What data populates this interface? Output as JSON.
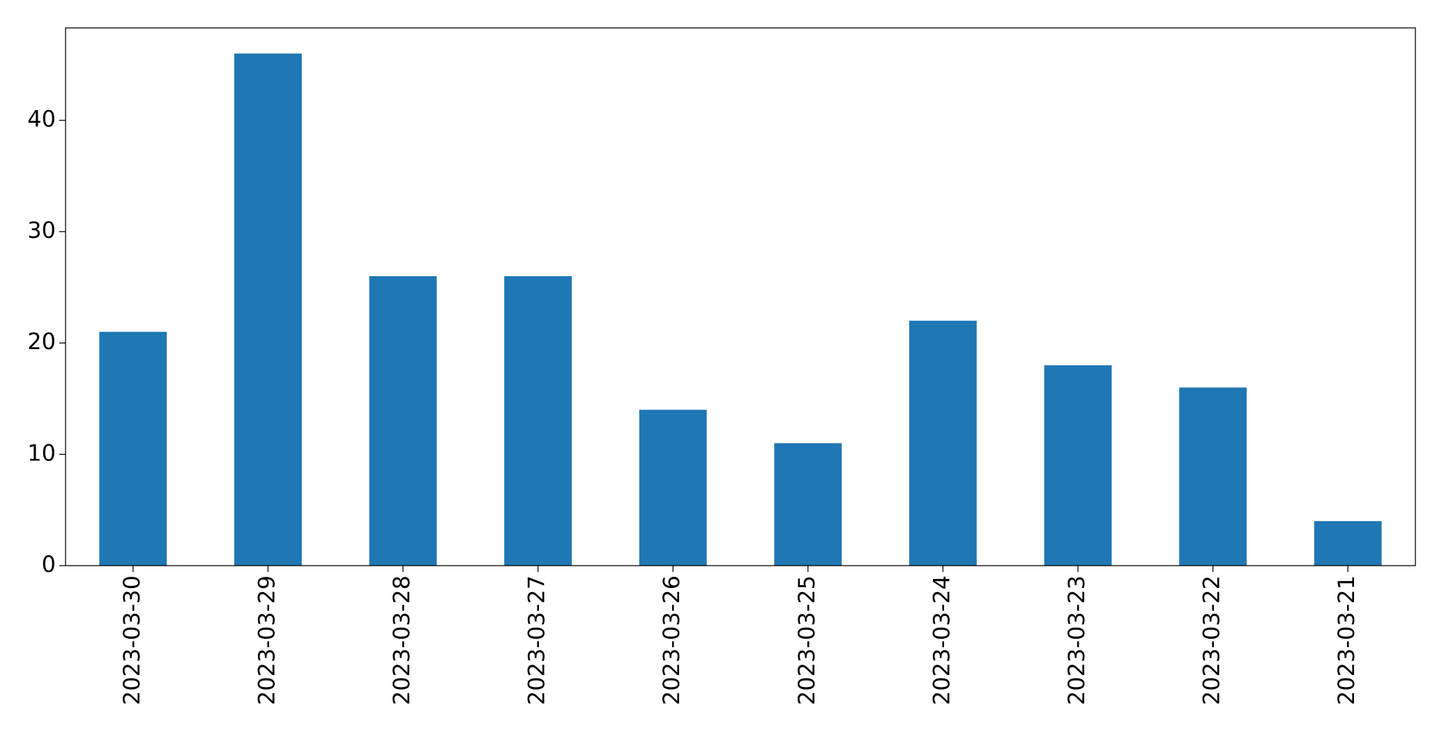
{
  "chart_data": {
    "type": "bar",
    "categories": [
      "2023-03-30",
      "2023-03-29",
      "2023-03-28",
      "2023-03-27",
      "2023-03-26",
      "2023-03-25",
      "2023-03-24",
      "2023-03-23",
      "2023-03-22",
      "2023-03-21"
    ],
    "values": [
      21,
      46,
      26,
      26,
      14,
      11,
      22,
      18,
      16,
      4
    ],
    "color": "#1f77b4",
    "ylim": [
      0,
      48.3
    ],
    "yticks": [
      0,
      10,
      20,
      30,
      40
    ],
    "grid": false
  }
}
